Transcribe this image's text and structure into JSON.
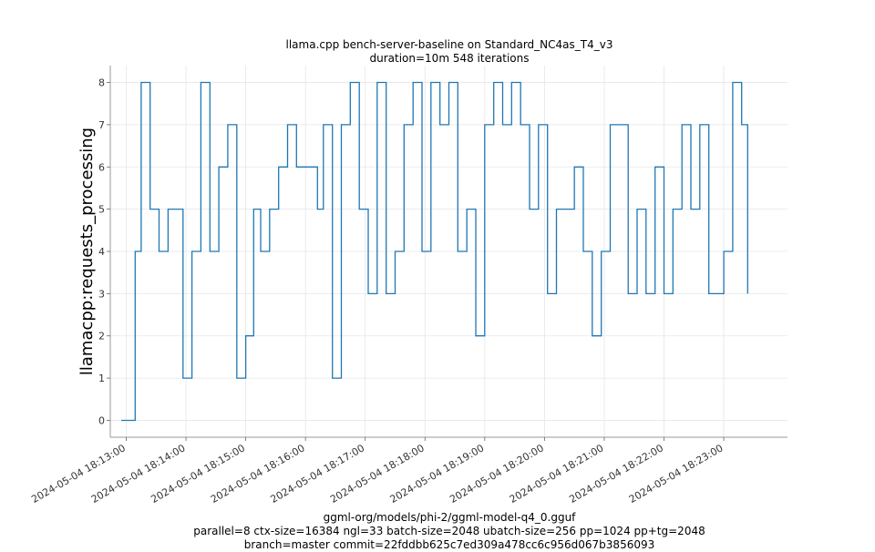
{
  "chart_data": {
    "type": "line",
    "title": "llama.cpp bench-server-baseline on Standard_NC4as_T4_v3",
    "subtitle": "duration=10m 548 iterations",
    "xlabel": "",
    "ylabel": "llamacpp:requests_processing",
    "ylim": [
      -0.4,
      8.4
    ],
    "xlim": [
      "2024-05-04 18:12:44",
      "2024-05-04 18:24:04"
    ],
    "grid": true,
    "y_ticks": [
      0,
      1,
      2,
      3,
      4,
      5,
      6,
      7,
      8
    ],
    "x_ticks": [
      "2024-05-04 18:13:00",
      "2024-05-04 18:14:00",
      "2024-05-04 18:15:00",
      "2024-05-04 18:16:00",
      "2024-05-04 18:17:00",
      "2024-05-04 18:18:00",
      "2024-05-04 18:19:00",
      "2024-05-04 18:20:00",
      "2024-05-04 18:21:00",
      "2024-05-04 18:22:00",
      "2024-05-04 18:23:00"
    ],
    "series": [
      {
        "color": "#1f77b4",
        "step": true,
        "x": [
          "2024-05-04 18:12:55",
          "2024-05-04 18:13:09",
          "2024-05-04 18:13:15",
          "2024-05-04 18:13:24",
          "2024-05-04 18:13:33",
          "2024-05-04 18:13:42",
          "2024-05-04 18:13:57",
          "2024-05-04 18:14:06",
          "2024-05-04 18:14:15",
          "2024-05-04 18:14:24",
          "2024-05-04 18:14:33",
          "2024-05-04 18:14:42",
          "2024-05-04 18:14:51",
          "2024-05-04 18:15:00",
          "2024-05-04 18:15:08",
          "2024-05-04 18:15:15",
          "2024-05-04 18:15:24",
          "2024-05-04 18:15:33",
          "2024-05-04 18:15:42",
          "2024-05-04 18:15:51",
          "2024-05-04 18:16:12",
          "2024-05-04 18:16:18",
          "2024-05-04 18:16:27",
          "2024-05-04 18:16:36",
          "2024-05-04 18:16:45",
          "2024-05-04 18:16:54",
          "2024-05-04 18:17:03",
          "2024-05-04 18:17:12",
          "2024-05-04 18:17:21",
          "2024-05-04 18:17:30",
          "2024-05-04 18:17:39",
          "2024-05-04 18:17:48",
          "2024-05-04 18:17:57",
          "2024-05-04 18:18:06",
          "2024-05-04 18:18:15",
          "2024-05-04 18:18:24",
          "2024-05-04 18:18:33",
          "2024-05-04 18:18:42",
          "2024-05-04 18:18:51",
          "2024-05-04 18:19:00",
          "2024-05-04 18:19:09",
          "2024-05-04 18:19:18",
          "2024-05-04 18:19:27",
          "2024-05-04 18:19:36",
          "2024-05-04 18:19:45",
          "2024-05-04 18:19:54",
          "2024-05-04 18:20:03",
          "2024-05-04 18:20:12",
          "2024-05-04 18:20:30",
          "2024-05-04 18:20:39",
          "2024-05-04 18:20:48",
          "2024-05-04 18:20:57",
          "2024-05-04 18:21:06",
          "2024-05-04 18:21:24",
          "2024-05-04 18:21:33",
          "2024-05-04 18:21:42",
          "2024-05-04 18:21:51",
          "2024-05-04 18:22:00",
          "2024-05-04 18:22:09",
          "2024-05-04 18:22:18",
          "2024-05-04 18:22:27",
          "2024-05-04 18:22:36",
          "2024-05-04 18:22:45",
          "2024-05-04 18:23:00",
          "2024-05-04 18:23:09",
          "2024-05-04 18:23:18",
          "2024-05-04 18:23:24"
        ],
        "values": [
          0,
          4,
          8,
          5,
          4,
          5,
          1,
          4,
          8,
          4,
          6,
          7,
          1,
          2,
          5,
          4,
          5,
          6,
          7,
          6,
          5,
          7,
          1,
          7,
          8,
          5,
          3,
          8,
          3,
          4,
          7,
          8,
          4,
          8,
          7,
          8,
          4,
          5,
          2,
          7,
          8,
          7,
          8,
          7,
          5,
          7,
          3,
          5,
          6,
          4,
          2,
          4,
          7,
          3,
          5,
          3,
          6,
          3,
          5,
          7,
          5,
          7,
          3,
          4,
          8,
          7,
          3
        ]
      }
    ]
  },
  "footer": {
    "line1": "ggml-org/models/phi-2/ggml-model-q4_0.gguf",
    "line2": "parallel=8 ctx-size=16384 ngl=33 batch-size=2048 ubatch-size=256 pp=1024 pp+tg=2048",
    "line3": "branch=master commit=22fddbb625c7ed309a478cc6c956d067b3856093"
  }
}
